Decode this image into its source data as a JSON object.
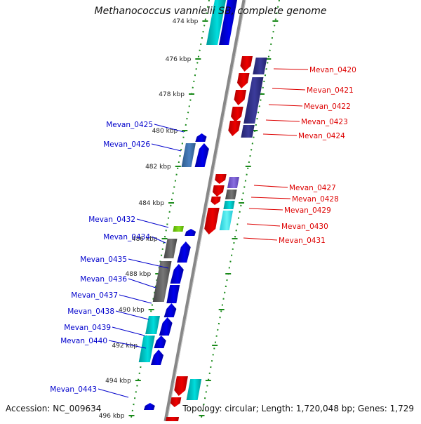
{
  "title": "Methanococcus vannielii SB, complete genome",
  "footer": {
    "accession": "Accession: NC_009634",
    "summary": "Topology: circular; Length: 1,720,048 bp; Genes: 1,729"
  },
  "colors": {
    "backbone": "#888888",
    "tick": "#1a8a1a",
    "forward_label": "#0000cc",
    "reverse_label": "#dd0000",
    "red": "#ee0000",
    "blue": "#0000ee",
    "cyan": "#00dddd",
    "navy": "#3b3b9b",
    "gray": "#777777",
    "steel": "#4a80c0",
    "lavender": "#8a70e0",
    "lime": "#88dd22"
  },
  "ticks": [
    "474 kbp",
    "476 kbp",
    "478 kbp",
    "480 kbp",
    "482 kbp",
    "484 kbp",
    "486 kbp",
    "488 kbp",
    "490 kbp",
    "492 kbp",
    "494 kbp",
    "496 kbp"
  ],
  "genes_reverse": [
    {
      "label": "Mevan_0420"
    },
    {
      "label": "Mevan_0421"
    },
    {
      "label": "Mevan_0422"
    },
    {
      "label": "Mevan_0423"
    },
    {
      "label": "Mevan_0424"
    },
    {
      "label": "Mevan_0427"
    },
    {
      "label": "Mevan_0428"
    },
    {
      "label": "Mevan_0429"
    },
    {
      "label": "Mevan_0430"
    },
    {
      "label": "Mevan_0431"
    }
  ],
  "genes_forward": [
    {
      "label": "Mevan_0425"
    },
    {
      "label": "Mevan_0426"
    },
    {
      "label": "Mevan_0432"
    },
    {
      "label": "Mevan_0434"
    },
    {
      "label": "Mevan_0435"
    },
    {
      "label": "Mevan_0436"
    },
    {
      "label": "Mevan_0437"
    },
    {
      "label": "Mevan_0438"
    },
    {
      "label": "Mevan_0439"
    },
    {
      "label": "Mevan_0440"
    },
    {
      "label": "Mevan_0443"
    }
  ]
}
